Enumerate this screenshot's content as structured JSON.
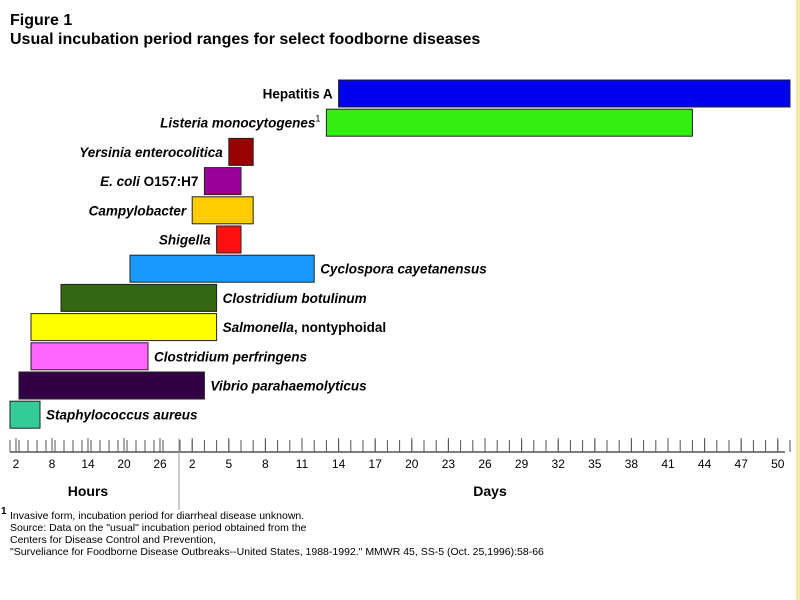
{
  "figure": {
    "label": "Figure 1",
    "title": "Usual incubation period ranges for select foodborne diseases"
  },
  "chart_data": {
    "type": "bar",
    "subtype": "floating-range",
    "x_axis": {
      "hours_ticks": [
        "2",
        "8",
        "14",
        "20",
        "26"
      ],
      "days_ticks": [
        "2",
        "5",
        "8",
        "11",
        "14",
        "17",
        "20",
        "23",
        "26",
        "29",
        "32",
        "35",
        "38",
        "41",
        "44",
        "47",
        "50"
      ],
      "sections": [
        "Hours",
        "Days"
      ]
    },
    "series": [
      {
        "label": "Hepatitis A",
        "ranges": [
          {
            "unit": "days",
            "start": 14,
            "end": 51
          }
        ],
        "color": "#0000ee",
        "label_side": "left"
      },
      {
        "label": "Listeria monocytogenes",
        "note": "1",
        "italic": true,
        "ranges": [
          {
            "unit": "days",
            "start": 13,
            "end": 43
          }
        ],
        "color": "#33ee11",
        "label_side": "left"
      },
      {
        "label": "Yersinia enterocolitica",
        "italic": true,
        "ranges": [
          {
            "unit": "days",
            "start": 5,
            "end": 7
          }
        ],
        "color": "#990000",
        "label_side": "left"
      },
      {
        "label_parts": [
          {
            "text": "E. coli",
            "italic": true
          },
          {
            "text": " O157:H7",
            "italic": false
          }
        ],
        "ranges": [
          {
            "unit": "days",
            "start": 3,
            "end": 6
          }
        ],
        "color": "#990099",
        "label_side": "left"
      },
      {
        "label": "Campylobacter",
        "italic": true,
        "ranges": [
          {
            "unit": "days",
            "start": 2,
            "end": 7
          }
        ],
        "color": "#ffcc00",
        "label_side": "left"
      },
      {
        "label": "Shigella",
        "italic": true,
        "ranges": [
          {
            "unit": "days",
            "start": 4,
            "end": 6
          }
        ],
        "color": "#ff1111",
        "label_side": "left"
      },
      {
        "label": "Cyclospora cayetanensus",
        "italic": true,
        "ranges": [
          {
            "unit": "hours",
            "start": 21,
            "end": 26
          },
          {
            "unit": "days",
            "start": 1,
            "end": 12
          }
        ],
        "color": "#1a99ff",
        "label_side": "right"
      },
      {
        "label": "Clostridium botulinum",
        "italic": true,
        "ranges": [
          {
            "unit": "hours",
            "start": 9.5,
            "end": 26
          },
          {
            "unit": "days",
            "start": 1,
            "end": 4
          }
        ],
        "color": "#336611",
        "label_side": "right"
      },
      {
        "label_parts": [
          {
            "text": "Salmonella",
            "italic": true
          },
          {
            "text": ", nontyphoidal",
            "italic": false
          }
        ],
        "ranges": [
          {
            "unit": "hours",
            "start": 4.5,
            "end": 26
          },
          {
            "unit": "days",
            "start": 1,
            "end": 4
          }
        ],
        "color": "#ffff00",
        "label_side": "right"
      },
      {
        "label": "Clostridium perfringens",
        "italic": true,
        "ranges": [
          {
            "unit": "hours",
            "start": 4.5,
            "end": 24
          }
        ],
        "color": "#ff66ff",
        "label_side": "right"
      },
      {
        "label": "Vibrio parahaemolyticus",
        "italic": true,
        "ranges": [
          {
            "unit": "hours",
            "start": 2.5,
            "end": 26
          },
          {
            "unit": "days",
            "start": 1,
            "end": 3
          }
        ],
        "color": "#330044",
        "label_side": "right"
      },
      {
        "label": "Staphylococcus aureus",
        "italic": true,
        "ranges": [
          {
            "unit": "hours",
            "start": 1,
            "end": 6
          }
        ],
        "color": "#33cc99",
        "label_side": "right"
      }
    ]
  },
  "footnote": {
    "marker": "1",
    "lines": [
      "Invasive form, incubation period for diarrheal disease unknown.",
      "Source:  Data on the \"usual\" incubation period obtained from the",
      "Centers for Disease Control and Prevention,",
      "\"Surveliance for Foodborne Disease Outbreaks--United States, 1988-1992.\"  MMWR 45, SS-5 (Oct. 25,1996):58-66"
    ]
  }
}
